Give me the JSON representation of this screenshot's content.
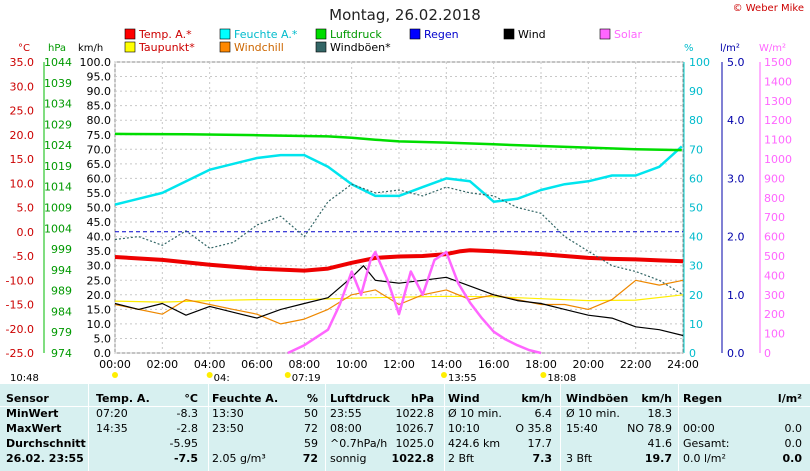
{
  "title": "Montag, 26.02.2018",
  "copyright": "© Weber Mike",
  "axis_units": {
    "temp": "°C",
    "hpa": "hPa",
    "kmh": "km/h",
    "percent": "%",
    "rain": "l/m²",
    "solar": "W/m²"
  },
  "legend": [
    {
      "label": "Temp. A.*",
      "color": "#ff0000"
    },
    {
      "label": "Feuchte A.*",
      "color": "#00ffff"
    },
    {
      "label": "Luftdruck",
      "color": "#00dd00"
    },
    {
      "label": "Regen",
      "color": "#0000ff"
    },
    {
      "label": "Wind",
      "color": "#000000"
    },
    {
      "label": "Solar",
      "color": "#ff66ff"
    },
    {
      "label": "Taupunkt*",
      "color": "#ffff00"
    },
    {
      "label": "Windchill",
      "color": "#ff8800"
    },
    {
      "label": "Windböen*",
      "color": "#336666"
    }
  ],
  "chart_data": {
    "type": "line",
    "title": "Montag, 26.02.2018",
    "x_ticks": [
      "00:00",
      "02:00",
      "04:00",
      "06:00",
      "08:00",
      "10:00",
      "12:00",
      "14:00",
      "16:00",
      "18:00",
      "20:00",
      "22:00",
      "24:00"
    ],
    "x_range": [
      0,
      24
    ],
    "y_axes": {
      "temp": {
        "range": [
          -25,
          35
        ],
        "ticks": [
          "35.0",
          "30.0",
          "25.0",
          "20.0",
          "15.0",
          "10.0",
          "5.0",
          "0.0",
          "-5.0",
          "-10.0",
          "-15.0",
          "-20.0",
          "-25.0"
        ]
      },
      "hpa": {
        "range": [
          974,
          1044
        ],
        "ticks": [
          "1044",
          "1039",
          "1034",
          "1029",
          "1024",
          "1019",
          "1014",
          "1009",
          "1004",
          "999",
          "994",
          "989",
          "984",
          "979",
          "974"
        ]
      },
      "kmh": {
        "range": [
          0,
          100
        ],
        "ticks": [
          "100.0",
          "95.0",
          "90.0",
          "85.0",
          "80.0",
          "75.0",
          "70.0",
          "65.0",
          "60.0",
          "55.0",
          "50.0",
          "45.0",
          "40.0",
          "35.0",
          "30.0",
          "25.0",
          "20.0",
          "15.0",
          "10.0",
          "5.0",
          "0.0"
        ]
      },
      "percent": {
        "range": [
          0,
          100
        ],
        "ticks": [
          "100",
          "90",
          "80",
          "70",
          "60",
          "50",
          "40",
          "30",
          "20",
          "10",
          "0"
        ]
      },
      "rain": {
        "range": [
          0,
          5
        ],
        "ticks": [
          "5.0",
          "4.0",
          "3.0",
          "2.0",
          "1.0",
          "0.0"
        ]
      },
      "solar": {
        "range": [
          0,
          1500
        ],
        "ticks": [
          "1500",
          "1400",
          "1300",
          "1200",
          "1100",
          "1000",
          "900",
          "800",
          "700",
          "600",
          "500",
          "400",
          "300",
          "200",
          "100",
          "0"
        ]
      }
    },
    "series": [
      {
        "name": "Temp. A.*",
        "axis": "temp",
        "color": "#ee0000",
        "x": [
          0,
          2,
          4,
          6,
          8,
          9,
          10,
          11,
          12,
          13,
          14,
          14.6,
          15,
          16,
          17,
          18,
          19,
          20,
          21,
          22,
          23,
          24
        ],
        "y": [
          -5.2,
          -5.8,
          -6.8,
          -7.6,
          -8.0,
          -7.6,
          -6.4,
          -5.4,
          -5.1,
          -5.0,
          -4.6,
          -4.0,
          -3.8,
          -4.0,
          -4.3,
          -4.6,
          -5.0,
          -5.4,
          -5.6,
          -5.7,
          -5.9,
          -6.1
        ]
      },
      {
        "name": "Feuchte A.*",
        "axis": "percent",
        "color": "#00e5ee",
        "x": [
          0,
          2,
          4,
          6,
          7,
          8,
          9,
          10,
          11,
          12,
          13,
          14,
          15,
          16,
          17,
          18,
          19,
          20,
          21,
          22,
          23,
          23.95
        ],
        "y": [
          51,
          55,
          63,
          67,
          68,
          68,
          64,
          58,
          54,
          54,
          57,
          60,
          59,
          52,
          53,
          56,
          58,
          59,
          61,
          61,
          64,
          71
        ]
      },
      {
        "name": "Luftdruck",
        "axis": "hpa",
        "color": "#00dd00",
        "x": [
          0,
          3,
          6,
          9,
          10,
          11,
          12,
          14,
          16,
          18,
          20,
          22,
          23.95
        ],
        "y": [
          1026.7,
          1026.6,
          1026.4,
          1026.1,
          1025.8,
          1025.3,
          1024.9,
          1024.6,
          1024.2,
          1023.8,
          1023.4,
          1023.0,
          1022.8
        ]
      },
      {
        "name": "Taupunkt*",
        "axis": "temp",
        "color": "#ffee00",
        "x": [
          0,
          2,
          4,
          6,
          8,
          10,
          12,
          14,
          16,
          18,
          20,
          22,
          24
        ],
        "y": [
          -14.3,
          -14.5,
          -14.2,
          -14.0,
          -14.0,
          -13.7,
          -13.5,
          -13.3,
          -13.4,
          -13.8,
          -14.2,
          -14.1,
          -13.0
        ]
      },
      {
        "name": "Windchill",
        "axis": "temp",
        "color": "#ee8800",
        "x": [
          0,
          1,
          2,
          3,
          4,
          5,
          6,
          7,
          8,
          9,
          10,
          11,
          12,
          13,
          14,
          15,
          16,
          17,
          18,
          19,
          20,
          21,
          22,
          23,
          24
        ],
        "y": [
          -15,
          -16,
          -17,
          -14,
          -15,
          -16,
          -17,
          -19,
          -18,
          -16,
          -13,
          -12,
          -15,
          -13,
          -12,
          -14,
          -13,
          -14,
          -15,
          -15,
          -16,
          -14,
          -10,
          -11,
          -10
        ]
      },
      {
        "name": "Wind",
        "axis": "kmh",
        "color": "#000000",
        "x": [
          0,
          1,
          2,
          3,
          4,
          5,
          6,
          7,
          8,
          9,
          10,
          10.5,
          11,
          12,
          13,
          14,
          15,
          16,
          17,
          18,
          19,
          20,
          21,
          22,
          23,
          24
        ],
        "y": [
          17,
          15,
          17,
          13,
          16,
          14,
          12,
          15,
          17,
          19,
          26,
          30,
          25,
          24,
          25,
          26,
          23,
          20,
          18,
          17,
          15,
          13,
          12,
          9,
          8,
          6
        ]
      },
      {
        "name": "Windböen*",
        "axis": "kmh",
        "color": "#336666",
        "x": [
          0,
          1,
          2,
          3,
          4,
          5,
          6,
          7,
          8,
          9,
          10,
          11,
          12,
          13,
          14,
          15,
          16,
          17,
          18,
          19,
          20,
          21,
          22,
          23,
          24
        ],
        "y": [
          39,
          40,
          37,
          42,
          36,
          38,
          44,
          47,
          40,
          52,
          58,
          55,
          56,
          54,
          57,
          55,
          54,
          50,
          48,
          40,
          35,
          30,
          28,
          25,
          20
        ]
      },
      {
        "name": "Solar",
        "axis": "solar",
        "color": "#ff66ff",
        "x": [
          7.3,
          8,
          9,
          9.5,
          10,
          10.4,
          10.8,
          11,
          11.5,
          12,
          12.5,
          13,
          13.5,
          14,
          14.5,
          15,
          15.5,
          16,
          16.5,
          17,
          17.5,
          18
        ],
        "y": [
          0,
          40,
          120,
          250,
          420,
          300,
          480,
          520,
          380,
          200,
          420,
          300,
          480,
          520,
          360,
          260,
          180,
          110,
          70,
          40,
          15,
          0
        ]
      }
    ],
    "time_markers": [
      {
        "label": "10:48",
        "x": 0.0
      },
      {
        "label": "04:",
        "x": 4.0
      },
      {
        "label": "07:19",
        "x": 7.3
      },
      {
        "label": "13:55",
        "x": 13.9
      },
      {
        "label": "18:08",
        "x": 18.1
      }
    ]
  },
  "table": {
    "headers": [
      "Sensor",
      "Temp. A.",
      "°C",
      "Feuchte A.",
      "%",
      "Luftdruck",
      "hPa",
      "Wind",
      "km/h",
      "Windböen",
      "km/h",
      "Regen",
      "l/m²"
    ],
    "rows": [
      {
        "label": "MinWert",
        "c1": "07:20",
        "c2": "-8.3",
        "c3": "13:30",
        "c4": "50",
        "c5": "23:55",
        "c6": "1022.8",
        "c7": "Ø 10 min.",
        "c8": "6.4",
        "c9": "Ø 10 min.",
        "c10": "18.3",
        "c11": "",
        "c12": ""
      },
      {
        "label": "MaxWert",
        "c1": "14:35",
        "c2": "-2.8",
        "c3": "23:50",
        "c4": "72",
        "c5": "08:00",
        "c6": "1026.7",
        "c7": "10:10",
        "c8": "O 35.8",
        "c9": "15:40",
        "c10": "NO 78.9",
        "c11": "00:00",
        "c12": "0.0"
      },
      {
        "label": "Durchschnitt",
        "c1": "",
        "c2": "-5.95",
        "c3": "",
        "c4": "59",
        "c5": "^0.7hPa/h",
        "c6": "1025.0",
        "c7": "424.6 km",
        "c8": "17.7",
        "c9": "",
        "c10": "41.6",
        "c11": "Gesamt:",
        "c12": "0.0"
      },
      {
        "label": "26.02. 23:55",
        "c1": "",
        "c2": "-7.5",
        "c3": "2.05 g/m³",
        "c4": "72",
        "c5": "sonnig",
        "c6": "1022.8",
        "c7": "2 Bft",
        "c8": "7.3",
        "c9": "3 Bft",
        "c10": "19.7",
        "c11": "0.0 l/m²",
        "c12": "0.0"
      }
    ]
  }
}
